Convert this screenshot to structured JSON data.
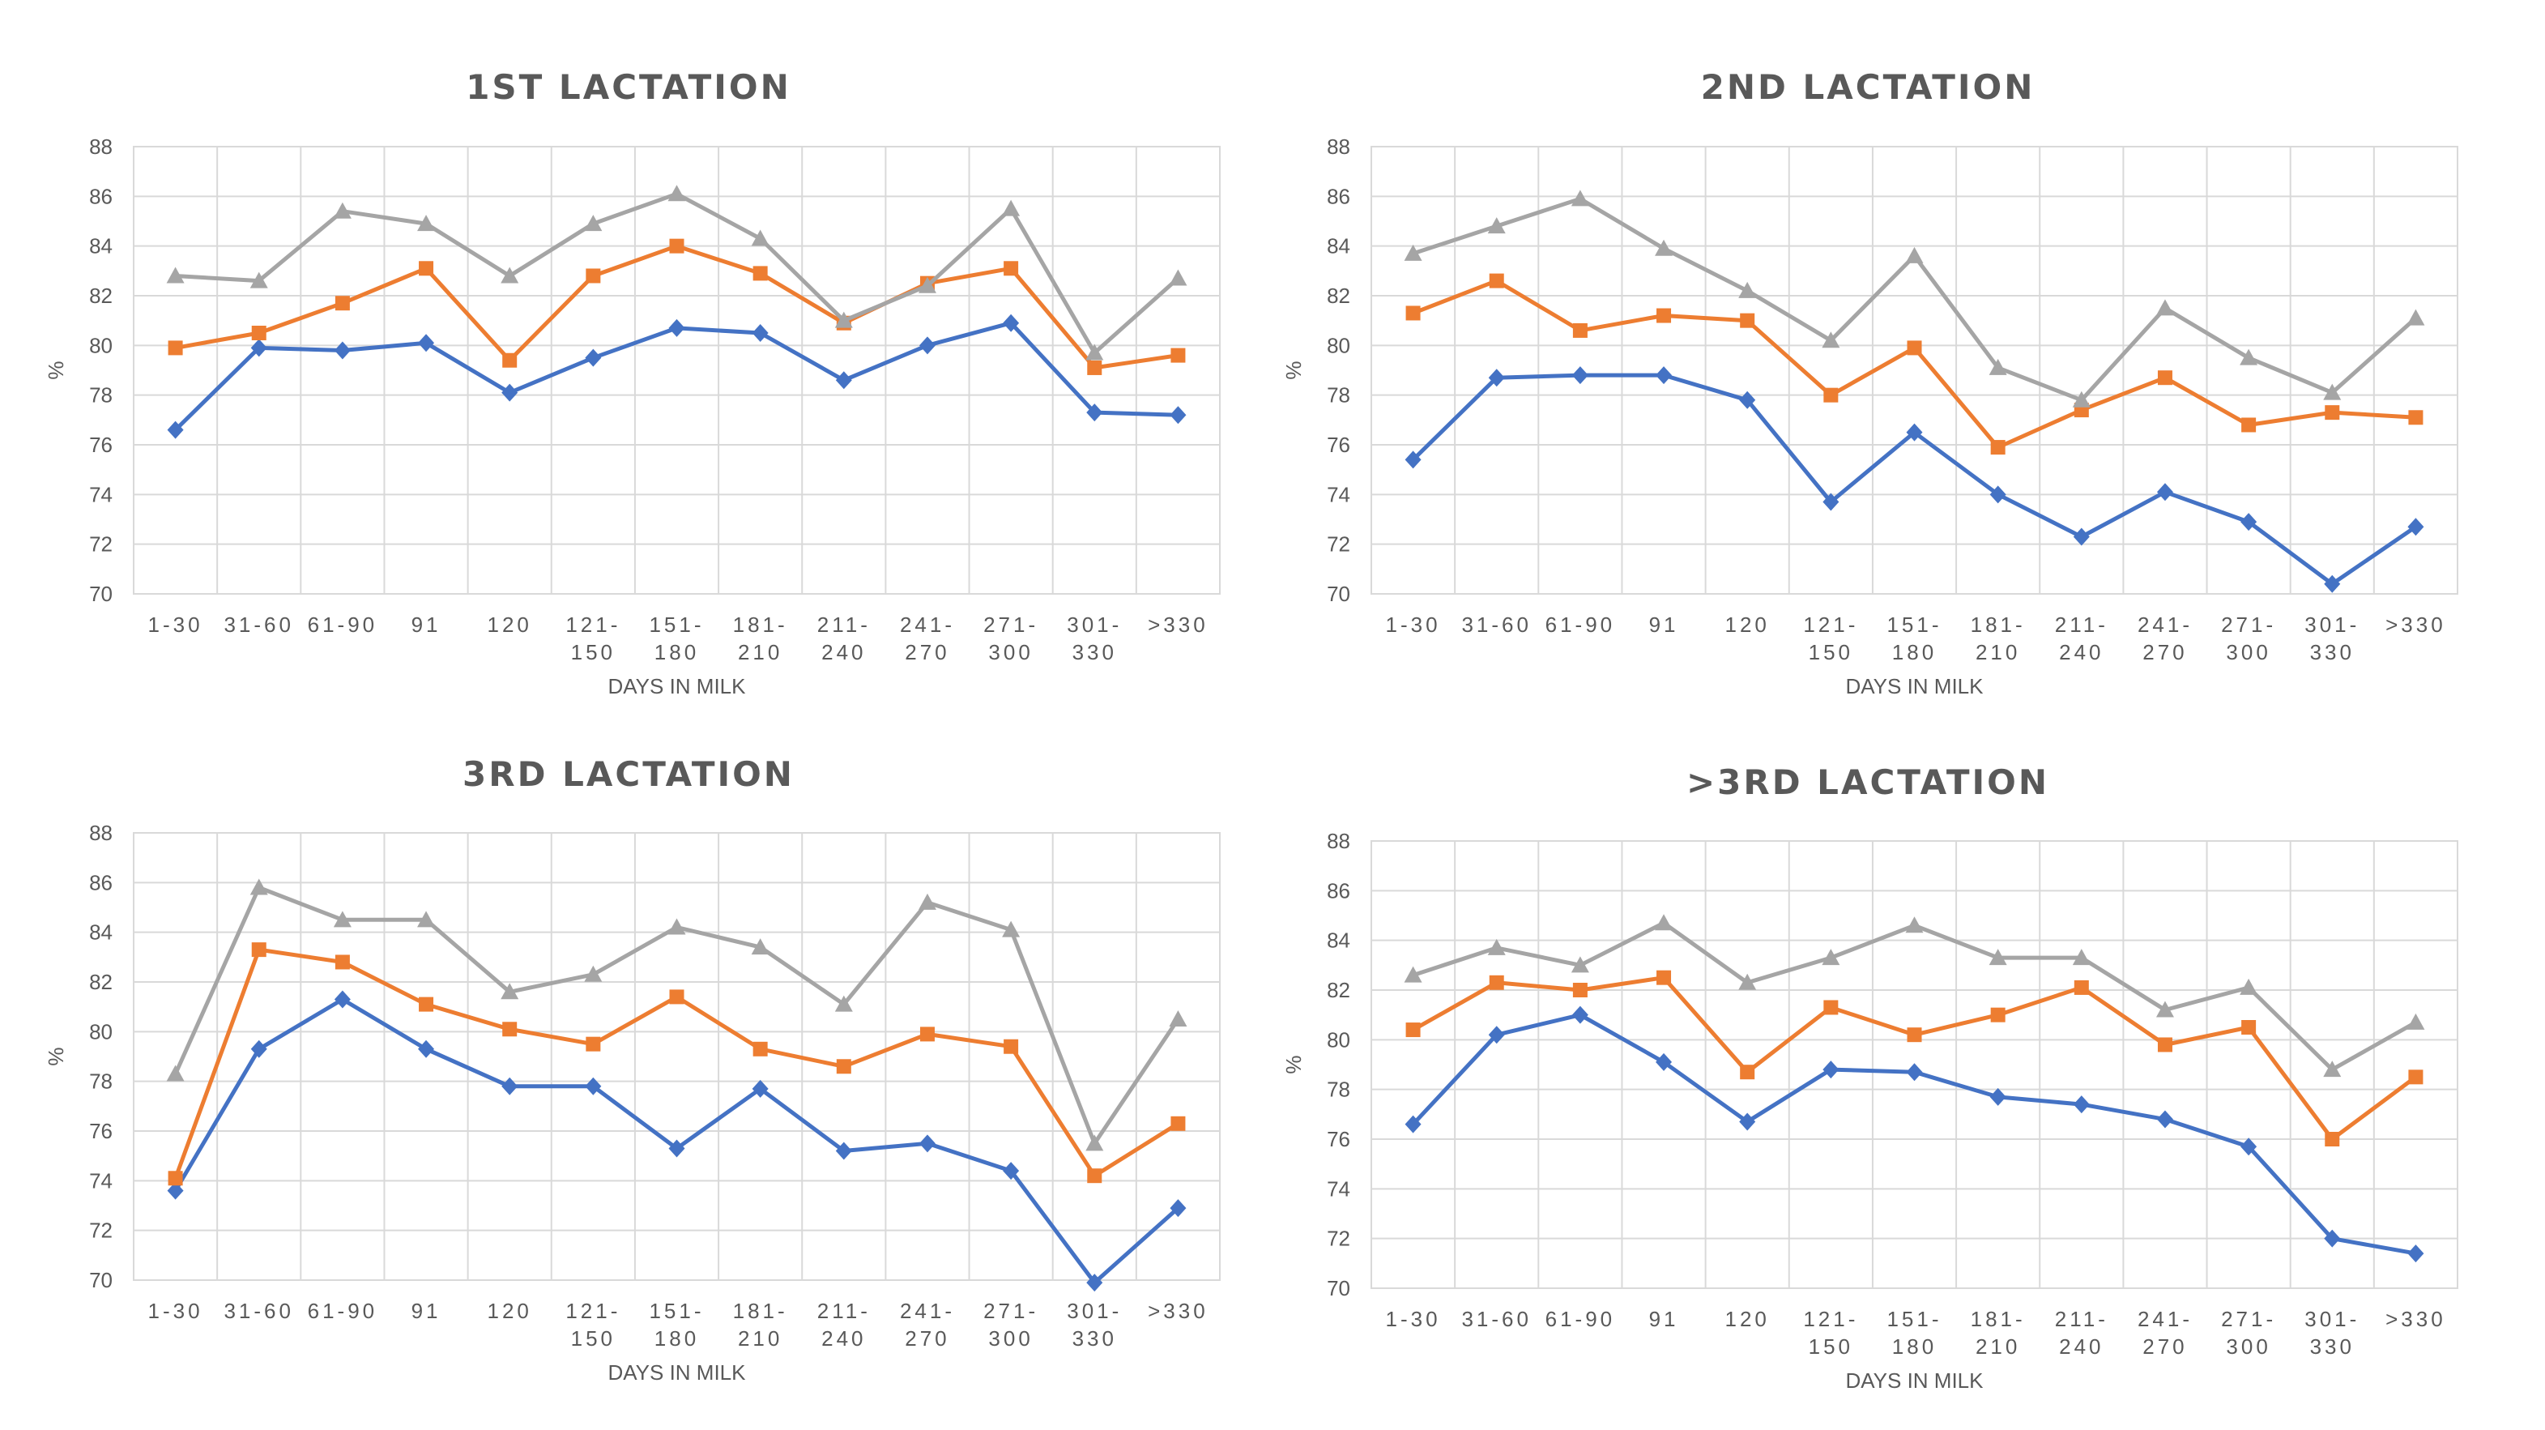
{
  "colors": {
    "series1": "#4472C4",
    "series2": "#ED7D31",
    "series3": "#A5A5A5"
  },
  "chart_data": [
    {
      "type": "line",
      "title": "1ST LACTATION",
      "xlabel": "DAYS IN MILK",
      "ylabel": "%",
      "ylim": [
        70,
        88
      ],
      "yticks": [
        70,
        72,
        74,
        76,
        78,
        80,
        82,
        84,
        86,
        88
      ],
      "categories": [
        "1-30",
        "31-60",
        "61-90",
        "91",
        "120",
        "121-\n150",
        "151-\n180",
        "181-\n210",
        "211-\n240",
        "241-\n270",
        "271-\n300",
        "301-\n330",
        ">330"
      ],
      "grid": true,
      "series": [
        {
          "marker": "diamond",
          "values": [
            76.6,
            79.9,
            79.8,
            80.1,
            78.1,
            79.5,
            80.7,
            80.5,
            78.6,
            80.0,
            80.9,
            77.3,
            77.2
          ]
        },
        {
          "marker": "square",
          "values": [
            79.9,
            80.5,
            81.7,
            83.1,
            79.4,
            82.8,
            84.0,
            82.9,
            80.9,
            82.5,
            83.1,
            79.1,
            79.6
          ]
        },
        {
          "marker": "triangle",
          "values": [
            82.8,
            82.6,
            85.4,
            84.9,
            82.8,
            84.9,
            86.1,
            84.3,
            81.0,
            82.4,
            85.5,
            79.7,
            82.7
          ]
        }
      ]
    },
    {
      "type": "line",
      "title": "2ND LACTATION",
      "xlabel": "DAYS IN MILK",
      "ylabel": "%",
      "ylim": [
        70,
        88
      ],
      "yticks": [
        70,
        72,
        74,
        76,
        78,
        80,
        82,
        84,
        86,
        88
      ],
      "categories": [
        "1-30",
        "31-60",
        "61-90",
        "91",
        "120",
        "121-\n150",
        "151-\n180",
        "181-\n210",
        "211-\n240",
        "241-\n270",
        "271-\n300",
        "301-\n330",
        ">330"
      ],
      "grid": true,
      "series": [
        {
          "marker": "diamond",
          "values": [
            75.4,
            78.7,
            78.8,
            78.8,
            77.8,
            73.7,
            76.5,
            74.0,
            72.3,
            74.1,
            72.9,
            70.4,
            72.7
          ]
        },
        {
          "marker": "square",
          "values": [
            81.3,
            82.6,
            80.6,
            81.2,
            81.0,
            78.0,
            79.9,
            75.9,
            77.4,
            78.7,
            76.8,
            77.3,
            77.1
          ]
        },
        {
          "marker": "triangle",
          "values": [
            83.7,
            84.8,
            85.9,
            83.9,
            82.2,
            80.2,
            83.6,
            79.1,
            77.8,
            81.5,
            79.5,
            78.1,
            81.1
          ]
        }
      ]
    },
    {
      "type": "line",
      "title": "3RD LACTATION",
      "xlabel": "DAYS IN MILK",
      "ylabel": "%",
      "ylim": [
        70,
        88
      ],
      "yticks": [
        70,
        72,
        74,
        76,
        78,
        80,
        82,
        84,
        86,
        88
      ],
      "categories": [
        "1-30",
        "31-60",
        "61-90",
        "91",
        "120",
        "121-\n150",
        "151-\n180",
        "181-\n210",
        "211-\n240",
        "241-\n270",
        "271-\n300",
        "301-\n330",
        ">330"
      ],
      "grid": true,
      "series": [
        {
          "marker": "diamond",
          "values": [
            73.6,
            79.3,
            81.3,
            79.3,
            77.8,
            77.8,
            75.3,
            77.7,
            75.2,
            75.5,
            74.4,
            69.9,
            72.9
          ]
        },
        {
          "marker": "square",
          "values": [
            74.1,
            83.3,
            82.8,
            81.1,
            80.1,
            79.5,
            81.4,
            79.3,
            78.6,
            79.9,
            79.4,
            74.2,
            76.3
          ]
        },
        {
          "marker": "triangle",
          "values": [
            78.3,
            85.8,
            84.5,
            84.5,
            81.6,
            82.3,
            84.2,
            83.4,
            81.1,
            85.2,
            84.1,
            75.5,
            80.5
          ]
        }
      ]
    },
    {
      "type": "line",
      "title": ">3RD LACTATION",
      "xlabel": "DAYS IN MILK",
      "ylabel": "%",
      "ylim": [
        70,
        88
      ],
      "yticks": [
        70,
        72,
        74,
        76,
        78,
        80,
        82,
        84,
        86,
        88
      ],
      "categories": [
        "1-30",
        "31-60",
        "61-90",
        "91",
        "120",
        "121-\n150",
        "151-\n180",
        "181-\n210",
        "211-\n240",
        "241-\n270",
        "271-\n300",
        "301-\n330",
        ">330"
      ],
      "grid": true,
      "series": [
        {
          "marker": "diamond",
          "values": [
            76.6,
            80.2,
            81.0,
            79.1,
            76.7,
            78.8,
            78.7,
            77.7,
            77.4,
            76.8,
            75.7,
            72.0,
            71.4
          ]
        },
        {
          "marker": "square",
          "values": [
            80.4,
            82.3,
            82.0,
            82.5,
            78.7,
            81.3,
            80.2,
            81.0,
            82.1,
            79.8,
            80.5,
            76.0,
            78.5
          ]
        },
        {
          "marker": "triangle",
          "values": [
            82.6,
            83.7,
            83.0,
            84.7,
            82.3,
            83.3,
            84.6,
            83.3,
            83.3,
            81.2,
            82.1,
            78.8,
            80.7
          ]
        }
      ]
    }
  ]
}
